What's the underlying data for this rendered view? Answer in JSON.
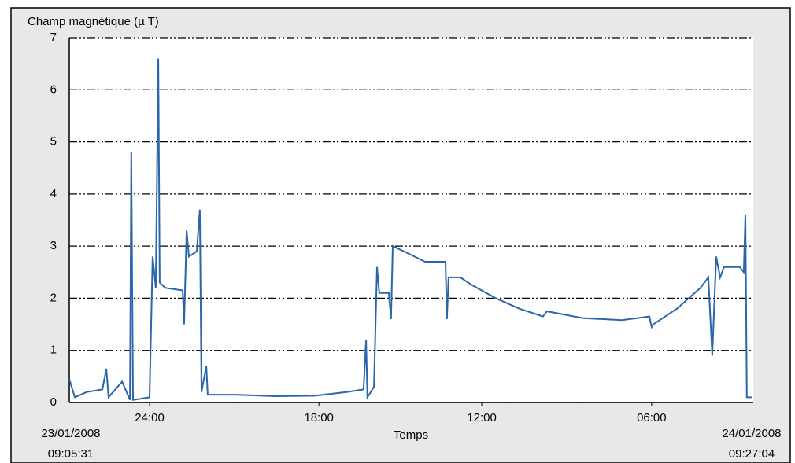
{
  "chart_data": {
    "type": "line",
    "title": "Champ magnétique (µ T)",
    "x_label": "Temps",
    "x_start": {
      "date": "23/01/2008",
      "time": "09:05:31"
    },
    "x_end": {
      "date": "24/01/2008",
      "time": "09:27:04"
    },
    "xlim": [
      0,
      24.36
    ],
    "xticks": [
      {
        "value": 2.86,
        "label": "24:00"
      },
      {
        "value": 8.89,
        "label": "18:00"
      },
      {
        "value": 14.69,
        "label": "12:00"
      },
      {
        "value": 20.74,
        "label": "06:00"
      }
    ],
    "ylim": [
      0,
      7
    ],
    "yticks": [
      0,
      1,
      2,
      3,
      4,
      5,
      6,
      7
    ],
    "grid": true,
    "series": [
      {
        "color": "#2a66a8",
        "x": [
          0,
          0.2,
          0.62,
          1.18,
          1.32,
          1.4,
          1.88,
          2.16,
          2.21,
          2.27,
          2.86,
          2.97,
          3.08,
          3.17,
          3.22,
          3.42,
          4.04,
          4.09,
          4.18,
          4.26,
          4.54,
          4.65,
          4.71,
          4.88,
          4.93,
          5.94,
          7.34,
          8.75,
          9.87,
          10.48,
          10.57,
          10.62,
          10.85,
          10.96,
          11.04,
          11.38,
          11.46,
          11.52,
          12.11,
          12.67,
          13.4,
          13.45,
          13.51,
          13.93,
          14.35,
          15.19,
          16.03,
          16.87,
          17.01,
          18.28,
          19.68,
          20.66,
          20.74,
          20.8,
          21.64,
          22.48,
          22.76,
          22.9,
          23.04,
          23.18,
          23.32,
          23.88,
          24.02,
          24.08,
          24.13,
          24.3
        ],
        "values": [
          0.45,
          0.1,
          0.2,
          0.25,
          0.65,
          0.1,
          0.4,
          0.05,
          4.8,
          0.05,
          0.1,
          2.8,
          2.2,
          6.6,
          2.3,
          2.2,
          2.15,
          1.5,
          3.3,
          2.8,
          2.9,
          3.7,
          0.2,
          0.7,
          0.15,
          0.15,
          0.12,
          0.13,
          0.2,
          0.25,
          1.2,
          0.1,
          0.3,
          2.6,
          2.1,
          2.1,
          1.6,
          3.0,
          2.85,
          2.7,
          2.7,
          1.6,
          2.4,
          2.4,
          2.25,
          2.0,
          1.8,
          1.65,
          1.75,
          1.62,
          1.58,
          1.65,
          1.45,
          1.5,
          1.8,
          2.2,
          2.4,
          0.9,
          2.8,
          2.4,
          2.6,
          2.6,
          2.5,
          3.6,
          0.1,
          0.1
        ]
      }
    ]
  }
}
